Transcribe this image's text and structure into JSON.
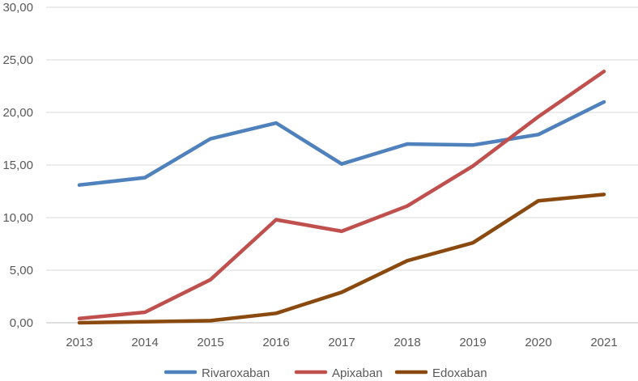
{
  "chart_data": {
    "type": "line",
    "title": "",
    "xlabel": "",
    "ylabel": "",
    "categories": [
      "2013",
      "2014",
      "2015",
      "2016",
      "2017",
      "2018",
      "2019",
      "2020",
      "2021"
    ],
    "ylim": [
      0,
      30
    ],
    "y_ticks": [
      "0,00",
      "5,00",
      "10,00",
      "15,00",
      "20,00",
      "25,00",
      "30,00"
    ],
    "grid": true,
    "legend_position": "bottom",
    "series": [
      {
        "name": "Rivaroxaban",
        "color": "#4f81bd",
        "values": [
          13.1,
          13.8,
          17.5,
          19.0,
          15.1,
          17.0,
          16.9,
          17.9,
          21.0
        ]
      },
      {
        "name": "Apixaban",
        "color": "#c0504d",
        "values": [
          0.4,
          1.0,
          4.1,
          9.8,
          8.7,
          11.1,
          14.9,
          19.6,
          23.9
        ]
      },
      {
        "name": "Edoxaban",
        "color": "#8a4a0f",
        "values": [
          0.0,
          0.1,
          0.2,
          0.9,
          2.9,
          5.9,
          7.6,
          11.6,
          12.2
        ]
      }
    ]
  }
}
